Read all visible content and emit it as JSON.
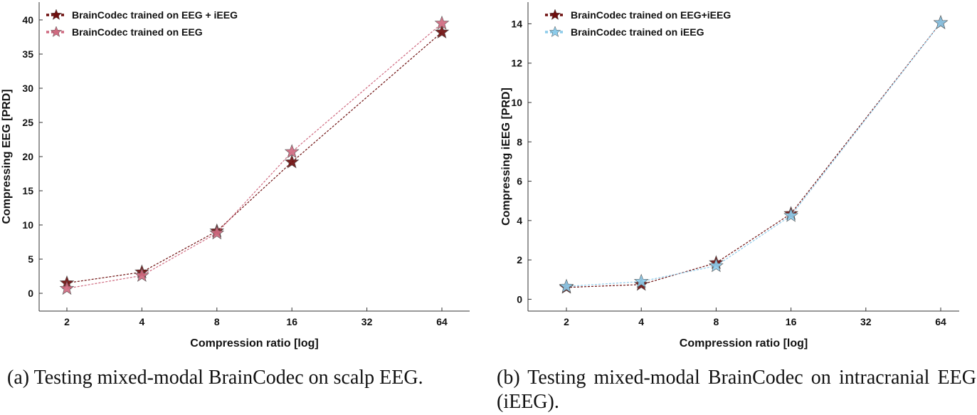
{
  "chart_data": [
    {
      "id": "a",
      "type": "line",
      "xlabel": "Compression ratio [log]",
      "ylabel": "Compressing EEG [PRD]",
      "x_scale": "log2",
      "x": [
        2,
        4,
        8,
        16,
        64
      ],
      "xticks": [
        2,
        4,
        8,
        16,
        32,
        64
      ],
      "yticks": [
        0,
        5,
        10,
        15,
        20,
        25,
        30,
        35,
        40
      ],
      "ylim": [
        -2.6,
        42.6
      ],
      "series": [
        {
          "name": "BrainCodec trained on EEG + iEEG",
          "color": "#6e0f0f",
          "values": [
            1.5,
            3.1,
            9.1,
            19.2,
            38.2
          ]
        },
        {
          "name": "BrainCodec trained on EEG",
          "color": "#cf6a80",
          "values": [
            0.7,
            2.6,
            8.8,
            20.7,
            39.5
          ]
        }
      ],
      "caption": "(a) Testing mixed-modal BrainCodec on scalp EEG."
    },
    {
      "id": "b",
      "type": "line",
      "xlabel": "Compression ratio [log]",
      "ylabel": "Compressing iEEG [PRD]",
      "x_scale": "log2",
      "x": [
        2,
        4,
        8,
        16,
        64
      ],
      "xticks": [
        2,
        4,
        8,
        16,
        32,
        64
      ],
      "yticks": [
        0,
        2,
        4,
        6,
        8,
        10,
        12,
        14
      ],
      "ylim": [
        -0.6,
        15.1
      ],
      "series": [
        {
          "name": "BrainCodec trained on EEG+iEEG",
          "color": "#6e0f0f",
          "values": [
            0.6,
            0.75,
            1.85,
            4.35,
            14.05
          ]
        },
        {
          "name": "BrainCodec trained on iEEG",
          "color": "#8ccbea",
          "values": [
            0.65,
            0.9,
            1.7,
            4.25,
            14.05
          ]
        }
      ],
      "caption": "(b) Testing mixed-modal BrainCodec on intracranial EEG (iEEG)."
    }
  ]
}
